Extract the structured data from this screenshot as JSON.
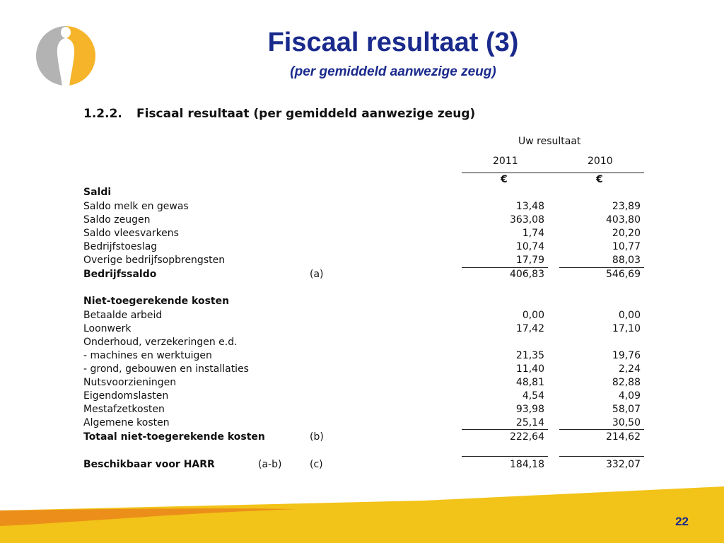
{
  "title": "Fiscaal resultaat (3)",
  "subtitle": "(per gemiddeld aanwezige zeug)",
  "section": {
    "number": "1.2.2.",
    "title": "Fiscaal resultaat (per gemiddeld aanwezige zeug)"
  },
  "table": {
    "group_header": "Uw resultaat",
    "years": [
      "2011",
      "2010"
    ],
    "currency": [
      "€",
      "€"
    ],
    "rows": [
      {
        "label": "Saldi",
        "bold": true
      },
      {
        "label": "Saldo melk en gewas",
        "v2011": "13,48",
        "v2010": "23,89"
      },
      {
        "label": "Saldo zeugen",
        "v2011": "363,08",
        "v2010": "403,80"
      },
      {
        "label": "Saldo vleesvarkens",
        "v2011": "1,74",
        "v2010": "20,20"
      },
      {
        "label": "Bedrijfstoeslag",
        "v2011": "10,74",
        "v2010": "10,77"
      },
      {
        "label": "Overige bedrijfsopbrengsten",
        "v2011": "17,79",
        "v2010": "88,03"
      },
      {
        "label": "Bedrijfssaldo",
        "bold": true,
        "note": "(a)",
        "v2011": "406,83",
        "v2010": "546,69"
      },
      {
        "label": ""
      },
      {
        "label": "Niet-toegerekende kosten",
        "bold": true
      },
      {
        "label": "Betaalde arbeid",
        "v2011": "0,00",
        "v2010": "0,00"
      },
      {
        "label": "Loonwerk",
        "v2011": "17,42",
        "v2010": "17,10"
      },
      {
        "label": "Onderhoud, verzekeringen e.d."
      },
      {
        "label": "- machines en werktuigen",
        "v2011": "21,35",
        "v2010": "19,76"
      },
      {
        "label": "- grond, gebouwen en installaties",
        "v2011": "11,40",
        "v2010": "2,24"
      },
      {
        "label": "Nutsvoorzieningen",
        "v2011": "48,81",
        "v2010": "82,88"
      },
      {
        "label": "Eigendomslasten",
        "v2011": "4,54",
        "v2010": "4,09"
      },
      {
        "label": "Mestafzetkosten",
        "v2011": "93,98",
        "v2010": "58,07"
      },
      {
        "label": "Algemene kosten",
        "v2011": "25,14",
        "v2010": "30,50"
      },
      {
        "label": "Totaal  niet-toegerekende kosten",
        "bold": true,
        "note": "(b)",
        "v2011": "222,64",
        "v2010": "214,62"
      },
      {
        "label": ""
      },
      {
        "label": "Beschikbaar voor HARR",
        "bold": true,
        "note2": "(a-b)",
        "note": "(c)",
        "v2011": "184,18",
        "v2010": "332,07"
      }
    ]
  },
  "page_number": "22",
  "colors": {
    "title": "#1a2a8c",
    "logo_grey": "#b3b3b3",
    "logo_yellow": "#f6b42a",
    "footer_yellow": "#f2c318",
    "footer_orange": "#ec8f1a"
  }
}
